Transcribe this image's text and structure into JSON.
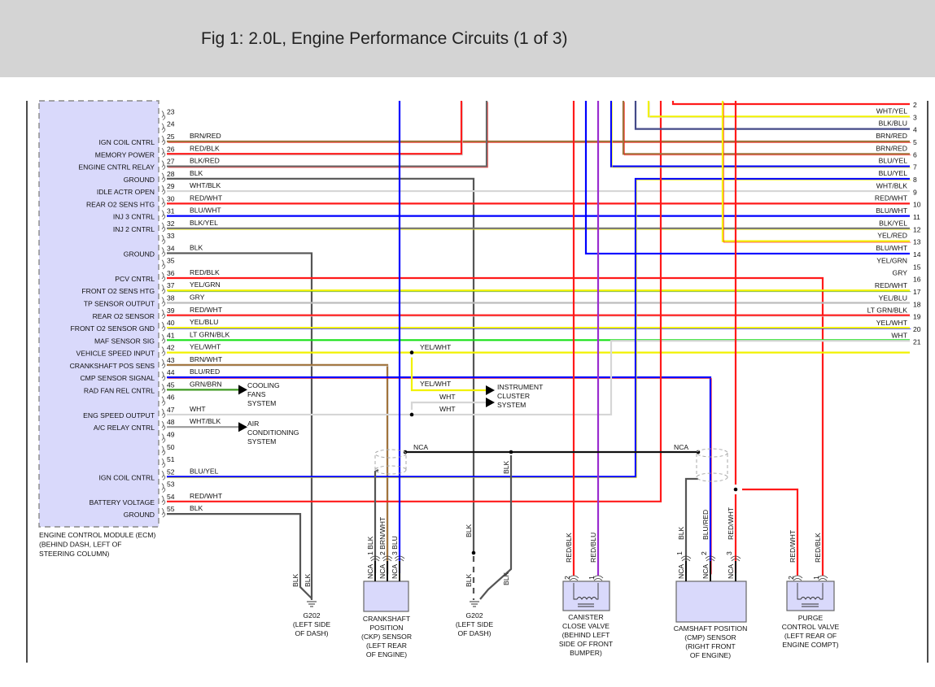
{
  "title": "Fig 1: 2.0L, Engine Performance Circuits (1 of 3)",
  "ecm": {
    "label_lines": [
      "ENGINE CONTROL MODULE (ECM)",
      "(BEHIND DASH, LEFT OF",
      "STEERING COLUMN)"
    ],
    "pins": [
      {
        "num": "23",
        "function": "",
        "wire": ""
      },
      {
        "num": "24",
        "function": "",
        "wire": ""
      },
      {
        "num": "25",
        "function": "IGN COIL CNTRL",
        "wire": "BRN/RED"
      },
      {
        "num": "26",
        "function": "MEMORY POWER",
        "wire": "RED/BLK"
      },
      {
        "num": "27",
        "function": "ENGINE CNTRL RELAY",
        "wire": "BLK/RED"
      },
      {
        "num": "28",
        "function": "GROUND",
        "wire": "BLK"
      },
      {
        "num": "29",
        "function": "IDLE ACTR OPEN",
        "wire": "WHT/BLK"
      },
      {
        "num": "30",
        "function": "REAR O2 SENS HTG",
        "wire": "RED/WHT"
      },
      {
        "num": "31",
        "function": "INJ 3 CNTRL",
        "wire": "BLU/WHT"
      },
      {
        "num": "32",
        "function": "INJ 2 CNTRL",
        "wire": "BLK/YEL"
      },
      {
        "num": "33",
        "function": "",
        "wire": ""
      },
      {
        "num": "34",
        "function": "GROUND",
        "wire": "BLK"
      },
      {
        "num": "35",
        "function": "",
        "wire": ""
      },
      {
        "num": "36",
        "function": "PCV CNTRL",
        "wire": "RED/BLK"
      },
      {
        "num": "37",
        "function": "FRONT O2 SENS HTG",
        "wire": "YEL/GRN"
      },
      {
        "num": "38",
        "function": "TP SENSOR OUTPUT",
        "wire": "GRY"
      },
      {
        "num": "39",
        "function": "REAR O2 SENSOR",
        "wire": "RED/WHT"
      },
      {
        "num": "40",
        "function": "FRONT O2 SENSOR GND",
        "wire": "YEL/BLU"
      },
      {
        "num": "41",
        "function": "MAF SENSOR SIG",
        "wire": "LT GRN/BLK"
      },
      {
        "num": "42",
        "function": "VEHICLE SPEED INPUT",
        "wire": "YEL/WHT"
      },
      {
        "num": "43",
        "function": "CRANKSHAFT POS SENS",
        "wire": "BRN/WHT"
      },
      {
        "num": "44",
        "function": "CMP SENSOR SIGNAL",
        "wire": "BLU/RED"
      },
      {
        "num": "45",
        "function": "RAD FAN REL CNTRL",
        "wire": "GRN/BRN"
      },
      {
        "num": "46",
        "function": "",
        "wire": ""
      },
      {
        "num": "47",
        "function": "ENG SPEED OUTPUT",
        "wire": "WHT"
      },
      {
        "num": "48",
        "function": "A/C RELAY CNTRL",
        "wire": "WHT/BLK"
      },
      {
        "num": "49",
        "function": "",
        "wire": ""
      },
      {
        "num": "50",
        "function": "",
        "wire": ""
      },
      {
        "num": "51",
        "function": "",
        "wire": ""
      },
      {
        "num": "52",
        "function": "IGN COIL CNTRL",
        "wire": "BLU/YEL"
      },
      {
        "num": "53",
        "function": "",
        "wire": ""
      },
      {
        "num": "54",
        "function": "BATTERY VOLTAGE",
        "wire": "RED/WHT"
      },
      {
        "num": "55",
        "function": "GROUND",
        "wire": "BLK"
      }
    ]
  },
  "right_connector": {
    "pins": [
      {
        "num": "2",
        "wire": ""
      },
      {
        "num": "3",
        "wire": "WHT/YEL"
      },
      {
        "num": "4",
        "wire": "BLK/BLU"
      },
      {
        "num": "5",
        "wire": "BRN/RED"
      },
      {
        "num": "6",
        "wire": "BRN/RED"
      },
      {
        "num": "7",
        "wire": "BLU/YEL"
      },
      {
        "num": "8",
        "wire": "BLU/YEL"
      },
      {
        "num": "9",
        "wire": "WHT/BLK"
      },
      {
        "num": "10",
        "wire": "RED/WHT"
      },
      {
        "num": "11",
        "wire": "BLU/WHT"
      },
      {
        "num": "12",
        "wire": "BLK/YEL"
      },
      {
        "num": "13",
        "wire": "YEL/RED"
      },
      {
        "num": "14",
        "wire": "BLU/WHT"
      },
      {
        "num": "15",
        "wire": "YEL/GRN"
      },
      {
        "num": "16",
        "wire": "GRY"
      },
      {
        "num": "17",
        "wire": "RED/WHT"
      },
      {
        "num": "18",
        "wire": "YEL/BLU"
      },
      {
        "num": "19",
        "wire": "LT GRN/BLK"
      },
      {
        "num": "20",
        "wire": "YEL/WHT"
      },
      {
        "num": "21",
        "wire": "WHT"
      }
    ]
  },
  "destinations": {
    "cooling_fans": [
      "COOLING",
      "FANS",
      "SYSTEM"
    ],
    "air_conditioning": [
      "AIR",
      "CONDITIONING",
      "SYSTEM"
    ],
    "instrument_cluster": [
      "INSTRUMENT",
      "CLUSTER",
      "SYSTEM"
    ]
  },
  "inline_labels": {
    "yel_wht_splice": "YEL/WHT",
    "yel_wht_branch": "YEL/WHT",
    "wht_branch": "WHT",
    "wht_splice": "WHT",
    "nca_left": "NCA",
    "nca_right": "NCA",
    "blk_shield_drain": "BLK",
    "blk_g202_right_a": "BLK",
    "blk_g202_right_b": "BLK",
    "blk_g202_right_c": "BLK",
    "blk_g202_left_a": "BLK",
    "blk_g202_left_b": "BLK"
  },
  "components": {
    "g202_left": [
      "G202",
      "(LEFT SIDE",
      "OF DASH)"
    ],
    "g202_right": [
      "G202",
      "(LEFT SIDE",
      "OF DASH)"
    ],
    "ckp": {
      "label": [
        "CRANKSHAFT",
        "POSITION",
        "(CKP) SENSOR",
        "(LEFT REAR",
        "OF ENGINE)"
      ],
      "pins": [
        {
          "pin": "1 BLK",
          "nca": "NCA"
        },
        {
          "pin": "2 BRN/WHT",
          "nca": "NCA"
        },
        {
          "pin": "3 BLU",
          "nca": "NCA"
        }
      ]
    },
    "canister": {
      "label": [
        "CANISTER",
        "CLOSE VALVE",
        "(BEHIND LEFT",
        "SIDE OF FRONT",
        "BUMPER)"
      ],
      "pins": [
        {
          "num": "2",
          "wire": "RED/BLK"
        },
        {
          "num": "1",
          "wire": "RED/BLU"
        }
      ]
    },
    "cmp": {
      "label": [
        "CAMSHAFT POSITION",
        "(CMP) SENSOR",
        "(RIGHT FRONT",
        "OF ENGINE)"
      ],
      "pins": [
        {
          "num": "1",
          "wire": "BLK",
          "nca": "NCA"
        },
        {
          "num": "2",
          "wire": "BLU/RED",
          "nca": "NCA"
        },
        {
          "num": "3",
          "wire": "RED/WHT",
          "nca": "NCA"
        }
      ]
    },
    "purge": {
      "label": [
        "PURGE",
        "CONTROL VALVE",
        "(LEFT REAR OF",
        "ENGINE COMPT)"
      ],
      "pins": [
        {
          "num": "2",
          "wire": "RED/WHT"
        },
        {
          "num": "1",
          "wire": "RED/BLK"
        }
      ]
    }
  },
  "wire_colors": {
    "RED": "#ff1a1a",
    "BLK": "#555555",
    "BLU": "#0000ff",
    "BRN": "#a0723a",
    "YEL": "#f2f200",
    "WHT": "#d6d6d6",
    "GRN": "#3f9a22",
    "LTGRN": "#18e018",
    "GRY": "#bdbdbd",
    "PUR": "#9a2ccf",
    "ECM_FILL": "#d9d9fb",
    "HEADER": "#d4d4d4"
  }
}
